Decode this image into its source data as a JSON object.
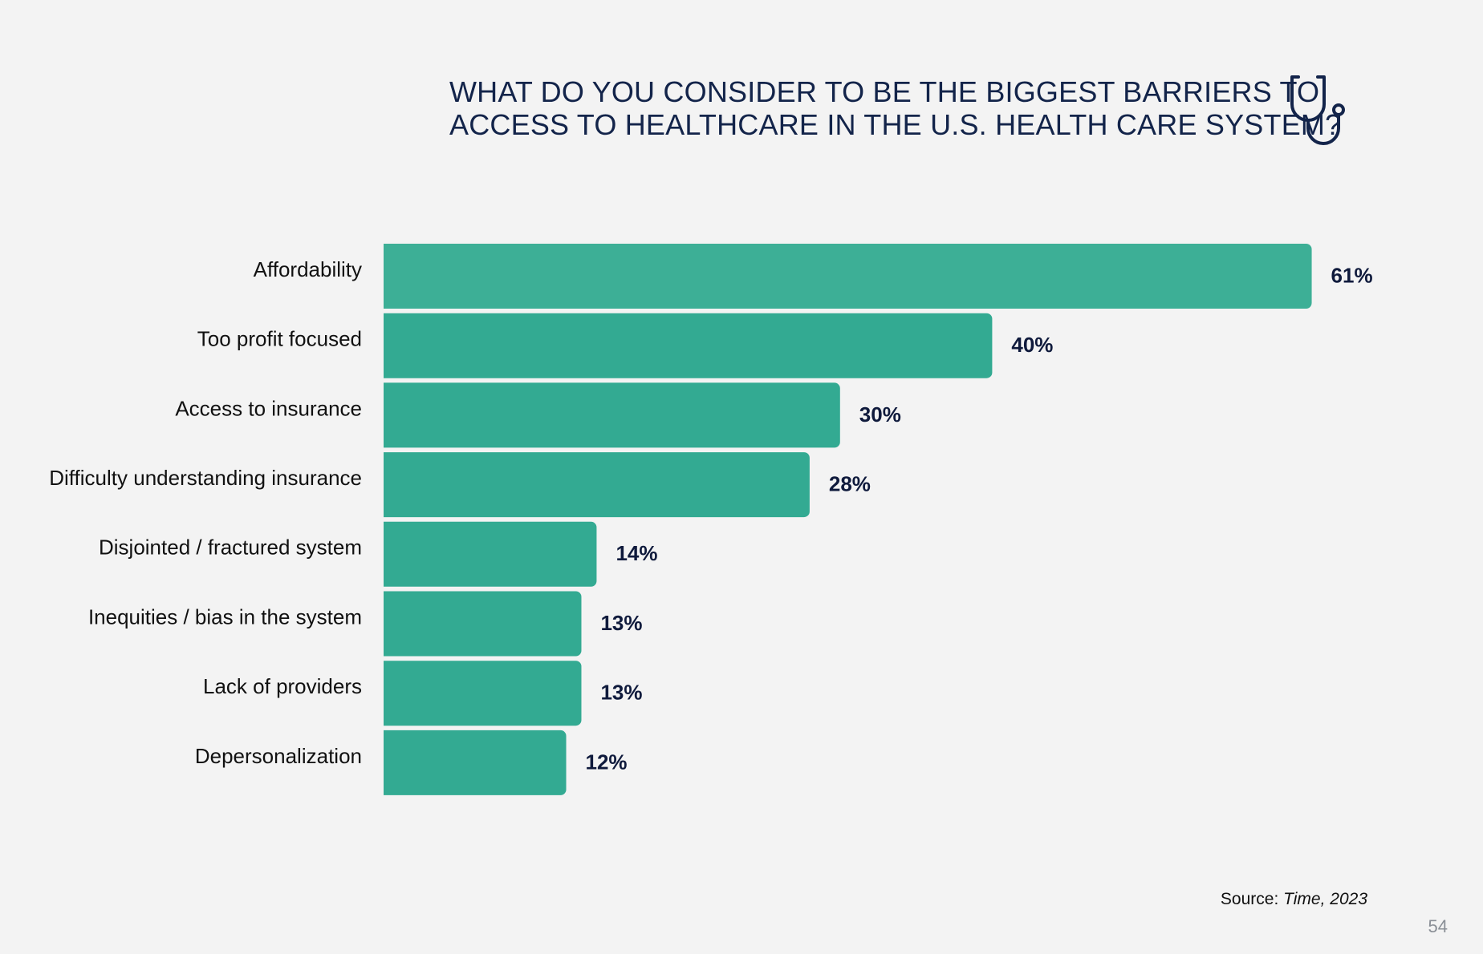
{
  "title": {
    "line1": "WHAT DO YOU CONSIDER TO BE THE BIGGEST BARRIERS TO",
    "line2": "ACCESS TO HEALTHCARE IN THE U.S. HEALTH CARE SYSTEM?"
  },
  "icon": "stethoscope-icon",
  "colors": {
    "background": "#f3f3f3",
    "bar_primary": "#3daf96",
    "bar": "#33aa92",
    "text": "#13244a",
    "value_label": "#0f1a3c"
  },
  "chart_data": {
    "type": "bar",
    "orientation": "horizontal",
    "title": "WHAT DO YOU CONSIDER TO BE THE BIGGEST BARRIERS TO ACCESS TO HEALTHCARE IN THE U.S. HEALTH CARE SYSTEM?",
    "categories": [
      "Affordability",
      "Too profit focused",
      "Access to insurance",
      "Difficulty understanding insurance",
      "Disjointed / fractured system",
      "Inequities / bias in the system",
      "Lack of providers",
      "Depersonalization"
    ],
    "values": [
      61,
      40,
      30,
      28,
      14,
      13,
      13,
      12
    ],
    "value_labels": [
      "61%",
      "40%",
      "30%",
      "28%",
      "14%",
      "13%",
      "13%",
      "12%"
    ],
    "unit": "%",
    "xlabel": "",
    "ylabel": "",
    "grid": false,
    "legend": "none"
  },
  "source": {
    "prefix": "Source: ",
    "citation": "Time, 2023"
  },
  "page_number": "54"
}
